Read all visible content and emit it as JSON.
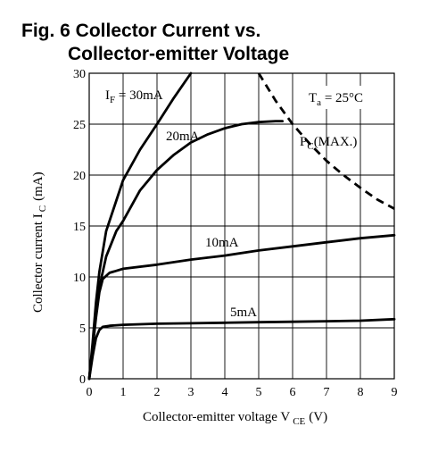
{
  "chart_data": {
    "type": "line",
    "title_line1": "Fig. 6 Collector Current vs.",
    "title_line2": "Collector-emitter Voltage",
    "xlabel": {
      "main": "Collector-emitter voltage V",
      "sub": "CE",
      "unit": "(V)"
    },
    "ylabel": {
      "main": "Collector current I",
      "sub": "C",
      "unit": "(mA)"
    },
    "xlim": [
      0,
      9
    ],
    "ylim": [
      0,
      30
    ],
    "x_ticks": [
      0,
      1,
      2,
      3,
      4,
      5,
      6,
      7,
      8,
      9
    ],
    "y_ticks": [
      0,
      5,
      10,
      15,
      20,
      25,
      30
    ],
    "grid": true,
    "series": [
      {
        "name": "I_F = 30mA",
        "label_main": "I",
        "label_sub": "F",
        "label_rest": " = 30mA",
        "x": [
          0,
          0.1,
          0.2,
          0.3,
          0.5,
          0.8,
          1.0,
          1.5,
          2.0,
          2.5,
          3.0
        ],
        "y": [
          0,
          3.5,
          7.5,
          10.5,
          14.5,
          17.5,
          19.5,
          22.5,
          25,
          27.6,
          30
        ]
      },
      {
        "name": "20mA",
        "label_main": "20mA",
        "x": [
          0,
          0.1,
          0.2,
          0.3,
          0.5,
          0.8,
          1.0,
          1.5,
          2.0,
          2.5,
          3.0,
          3.5,
          4.0,
          4.5,
          5.0,
          5.5,
          5.7
        ],
        "y": [
          0,
          3.0,
          6.5,
          9.0,
          12.0,
          14.5,
          15.5,
          18.5,
          20.5,
          22.0,
          23.2,
          24.0,
          24.6,
          25.0,
          25.2,
          25.3,
          25.3
        ]
      },
      {
        "name": "10mA",
        "label_main": "10mA",
        "x": [
          0,
          0.1,
          0.2,
          0.3,
          0.4,
          0.6,
          0.8,
          1.0,
          2,
          3,
          4,
          5,
          6,
          7,
          8,
          9
        ],
        "y": [
          0,
          3.0,
          6.0,
          8.5,
          9.8,
          10.4,
          10.6,
          10.8,
          11.2,
          11.7,
          12.1,
          12.6,
          13.0,
          13.4,
          13.8,
          14.1
        ]
      },
      {
        "name": "5mA",
        "label_main": "5mA",
        "x": [
          0,
          0.1,
          0.2,
          0.3,
          0.4,
          0.6,
          1,
          2,
          3,
          4,
          5,
          6,
          7,
          8,
          9
        ],
        "y": [
          0,
          2.2,
          4.0,
          4.8,
          5.1,
          5.2,
          5.3,
          5.4,
          5.45,
          5.5,
          5.55,
          5.6,
          5.65,
          5.7,
          5.85
        ]
      },
      {
        "name": "P_C(MAX.)",
        "label_main": "P",
        "label_sub": "C",
        "label_rest": "(MAX.)",
        "dashed": true,
        "x": [
          5.0,
          5.5,
          6.0,
          6.5,
          7.0,
          7.5,
          8.0,
          8.5,
          9.0
        ],
        "y": [
          30,
          27.3,
          25.0,
          23.1,
          21.4,
          20.0,
          18.75,
          17.6,
          16.7
        ]
      }
    ],
    "annotations": [
      {
        "main": "T",
        "sub": "a",
        "rest": " = 25°C"
      }
    ]
  }
}
